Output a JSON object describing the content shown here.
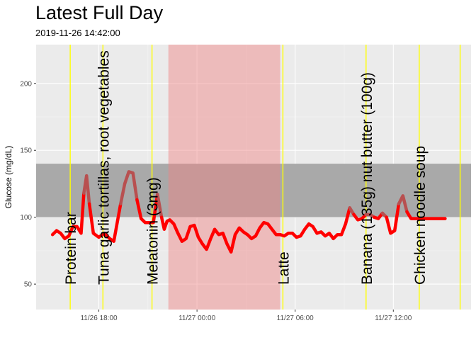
{
  "chart_data": {
    "type": "line",
    "title": "Latest Full Day",
    "subtitle": "2019-11-26 14:42:00",
    "ylabel": "Glucose (mg/dL)",
    "xlabel": "",
    "xlim": [
      "2019-11-26 14:10",
      "2019-11-27 16:45"
    ],
    "ylim": [
      31,
      229
    ],
    "y_ticks": [
      50,
      100,
      150,
      200
    ],
    "x_ticks": [
      {
        "at": "2019-11-26 18:00",
        "label": "11/26 18:00"
      },
      {
        "at": "2019-11-27 00:00",
        "label": "11/27 00:00"
      },
      {
        "at": "2019-11-27 06:00",
        "label": "11/27 06:00"
      },
      {
        "at": "2019-11-27 12:00",
        "label": "11/27 12:00"
      }
    ],
    "grid": true,
    "target_band": {
      "from": 100,
      "to": 140,
      "color": "#a9a9a9"
    },
    "sleep_band": {
      "start": "2019-11-26 22:15",
      "end": "2019-11-27 05:05",
      "color": "#f08080"
    },
    "events": [
      {
        "time": "2019-11-26 16:15",
        "label": "Protein bar"
      },
      {
        "time": "2019-11-26 18:15",
        "label": "Tuna garlic tortillas, root vegetables"
      },
      {
        "time": "2019-11-26 21:15",
        "label": "Melatonin (3mg)"
      },
      {
        "time": "2019-11-27 05:15",
        "label": "Latte"
      },
      {
        "time": "2019-11-27 10:20",
        "label": "Banana (135g) nut butter (100g)"
      },
      {
        "time": "2019-11-27 13:35",
        "label": "Chicken noodle soup"
      },
      {
        "time": "2019-11-27 16:05",
        "label": ""
      }
    ],
    "series": [
      {
        "line_color": "#ff0000",
        "highlight_color": "#b85050",
        "x": [
          "2019-11-26 15:10",
          "2019-11-26 15:25",
          "2019-11-26 15:40",
          "2019-11-26 15:55",
          "2019-11-26 16:10",
          "2019-11-26 16:25",
          "2019-11-26 16:40",
          "2019-11-26 16:55",
          "2019-11-26 17:05",
          "2019-11-26 17:15",
          "2019-11-26 17:25",
          "2019-11-26 17:40",
          "2019-11-26 18:00",
          "2019-11-26 18:20",
          "2019-11-26 18:40",
          "2019-11-26 18:55",
          "2019-11-26 19:10",
          "2019-11-26 19:20",
          "2019-11-26 19:35",
          "2019-11-26 19:50",
          "2019-11-26 20:05",
          "2019-11-26 20:20",
          "2019-11-26 20:35",
          "2019-11-26 20:50",
          "2019-11-26 21:05",
          "2019-11-26 21:20",
          "2019-11-26 21:35",
          "2019-11-26 21:50",
          "2019-11-26 22:00",
          "2019-11-26 22:10",
          "2019-11-26 22:20",
          "2019-11-26 22:35",
          "2019-11-26 22:50",
          "2019-11-26 23:05",
          "2019-11-26 23:20",
          "2019-11-26 23:35",
          "2019-11-26 23:50",
          "2019-11-27 00:05",
          "2019-11-27 00:20",
          "2019-11-27 00:35",
          "2019-11-27 00:50",
          "2019-11-27 01:05",
          "2019-11-27 01:20",
          "2019-11-27 01:35",
          "2019-11-27 01:50",
          "2019-11-27 02:05",
          "2019-11-27 02:20",
          "2019-11-27 02:35",
          "2019-11-27 02:50",
          "2019-11-27 03:05",
          "2019-11-27 03:20",
          "2019-11-27 03:35",
          "2019-11-27 03:50",
          "2019-11-27 04:05",
          "2019-11-27 04:20",
          "2019-11-27 04:35",
          "2019-11-27 04:50",
          "2019-11-27 05:05",
          "2019-11-27 05:20",
          "2019-11-27 05:35",
          "2019-11-27 05:50",
          "2019-11-27 06:05",
          "2019-11-27 06:20",
          "2019-11-27 06:35",
          "2019-11-27 06:50",
          "2019-11-27 07:05",
          "2019-11-27 07:20",
          "2019-11-27 07:35",
          "2019-11-27 07:50",
          "2019-11-27 08:05",
          "2019-11-27 08:20",
          "2019-11-27 08:35",
          "2019-11-27 08:50",
          "2019-11-27 09:05",
          "2019-11-27 09:20",
          "2019-11-27 09:35",
          "2019-11-27 09:50",
          "2019-11-27 10:05",
          "2019-11-27 10:20",
          "2019-11-27 10:35",
          "2019-11-27 10:50",
          "2019-11-27 11:05",
          "2019-11-27 11:20",
          "2019-11-27 11:35",
          "2019-11-27 11:50",
          "2019-11-27 12:05",
          "2019-11-27 12:20",
          "2019-11-27 12:35",
          "2019-11-27 12:50",
          "2019-11-27 13:05",
          "2019-11-27 13:20",
          "2019-11-27 13:35",
          "2019-11-27 13:50",
          "2019-11-27 14:05",
          "2019-11-27 14:15",
          "2019-11-27 14:25",
          "2019-11-27 14:40",
          "2019-11-27 14:55",
          "2019-11-27 15:10"
        ],
        "y": [
          87,
          90,
          88,
          84,
          86,
          93,
          93,
          88,
          118,
          131,
          110,
          88,
          85,
          88,
          84,
          82,
          99,
          110,
          125,
          134,
          133,
          113,
          99,
          96,
          96,
          96,
          117,
          100,
          91,
          97,
          98,
          95,
          88,
          82,
          84,
          93,
          94,
          85,
          80,
          76,
          84,
          91,
          87,
          88,
          80,
          74,
          87,
          92,
          89,
          87,
          84,
          86,
          92,
          96,
          95,
          91,
          87,
          87,
          86,
          88,
          88,
          85,
          86,
          91,
          95,
          93,
          88,
          89,
          86,
          88,
          84,
          87,
          87,
          95,
          107,
          102,
          98,
          99,
          102,
          102,
          100,
          99,
          103,
          100,
          88,
          90,
          110,
          116,
          104,
          99,
          99,
          99,
          99,
          99,
          99,
          99,
          99,
          99,
          99
        ],
        "y_note": "",
        "label_note": ""
      }
    ]
  }
}
